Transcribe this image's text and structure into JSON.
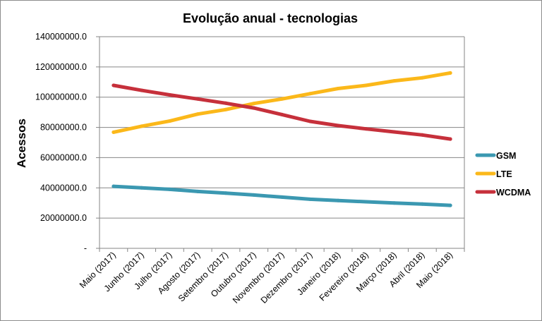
{
  "chart_data": {
    "type": "line",
    "title": "Evolução anual - tecnologias",
    "xlabel": "",
    "ylabel": "Acessos",
    "categories": [
      "Maio (2017)",
      "Junho (2017)",
      "Julho (2017)",
      "Agosto (2017)",
      "Setembro (2017)",
      "Outubro (2017)",
      "Novembro (2017)",
      "Dezembro (2017)",
      "Janeiro (2018)",
      "Fevereiro (2018)",
      "Março (2018)",
      "Abril (2018)",
      "Maio (2018)"
    ],
    "ylim": [
      0,
      140000000
    ],
    "yticks": [
      "-",
      "20000000.0",
      "40000000.0",
      "60000000.0",
      "80000000.0",
      "100000000.0",
      "120000000.0",
      "140000000.0"
    ],
    "grid": "horizontal",
    "legend_position": "right",
    "series": [
      {
        "name": "GSM",
        "color": "#3b98b1",
        "values": [
          41000000,
          40000000,
          39000000,
          37600000,
          36500000,
          35300000,
          33900000,
          32500000,
          31600000,
          30800000,
          30000000,
          29300000,
          28400000
        ]
      },
      {
        "name": "LTE",
        "color": "#fbb81a",
        "values": [
          76800000,
          80800000,
          84200000,
          88800000,
          91800000,
          95800000,
          98800000,
          102300000,
          105700000,
          107800000,
          110800000,
          112800000,
          116000000
        ]
      },
      {
        "name": "WCDMA",
        "color": "#c6303b",
        "values": [
          107800000,
          104500000,
          101500000,
          98800000,
          96000000,
          92800000,
          88500000,
          84000000,
          81200000,
          79000000,
          77000000,
          75000000,
          72300000
        ]
      }
    ]
  }
}
